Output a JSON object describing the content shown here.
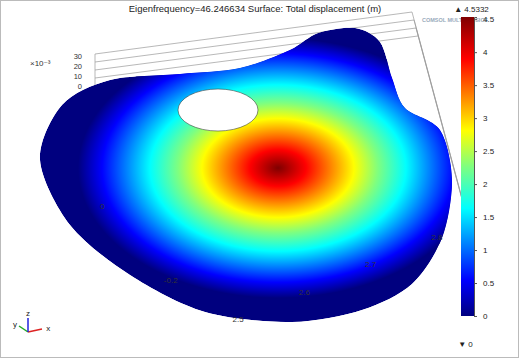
{
  "chart_data": {
    "type": "surface",
    "title": "Eigenfrequency=46.246634  Surface: Total displacement (m)",
    "logo": "COMSOL MULTIPHYSICS",
    "xticks": [
      2.5,
      2.6,
      2.7,
      2.8
    ],
    "xlim": [
      2.45,
      2.85
    ],
    "yticks": [
      -0.2,
      0
    ],
    "ylim": [
      -0.3,
      0.05
    ],
    "zticks": [
      0,
      10,
      20,
      30
    ],
    "zlim": [
      0,
      30
    ],
    "z_multiplier": "×10⁻³",
    "axis_names": [
      "x",
      "y",
      "z"
    ],
    "colorbar": {
      "range": [
        0,
        4.5332
      ],
      "ticks": [
        0,
        0.5,
        1,
        1.5,
        2,
        2.5,
        3,
        3.5,
        4,
        4.5
      ],
      "max": {
        "value": 4.5332,
        "label": "▲ 4.5332"
      },
      "min": {
        "value": 0,
        "label": "▼ 0"
      }
    }
  }
}
